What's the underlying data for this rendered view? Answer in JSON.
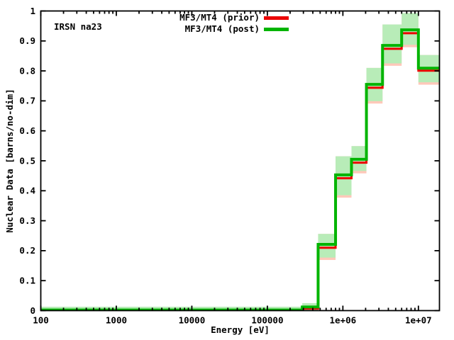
{
  "window": {
    "background": "#ffffff"
  },
  "chart_data": {
    "type": "step-line",
    "corner_label": "IRSN na23",
    "xlabel": "Energy [eV]",
    "ylabel": "Nuclear Data [barns/no-dim]",
    "x_scale": "log",
    "grid": "off",
    "legend_position": "top-center-inside",
    "xlim": [
      100,
      19000000
    ],
    "ylim": [
      0,
      1
    ],
    "x_ticks": [
      {
        "v": 100,
        "label": "100"
      },
      {
        "v": 1000,
        "label": "1000"
      },
      {
        "v": 10000,
        "label": "10000"
      },
      {
        "v": 100000,
        "label": "100000"
      },
      {
        "v": 1000000,
        "label": "1e+06"
      },
      {
        "v": 10000000,
        "label": "1e+07"
      }
    ],
    "y_ticks": [
      {
        "v": 0,
        "label": "0"
      },
      {
        "v": 0.1,
        "label": "0.1"
      },
      {
        "v": 0.2,
        "label": "0.2"
      },
      {
        "v": 0.3,
        "label": "0.3"
      },
      {
        "v": 0.4,
        "label": "0.4"
      },
      {
        "v": 0.5,
        "label": "0.5"
      },
      {
        "v": 0.6,
        "label": "0.6"
      },
      {
        "v": 0.7,
        "label": "0.7"
      },
      {
        "v": 0.8,
        "label": "0.8"
      },
      {
        "v": 0.9,
        "label": "0.9"
      },
      {
        "v": 1,
        "label": "1"
      }
    ],
    "legend": [
      {
        "label": "MF3/MT4 (prior)",
        "color": "#ec0000",
        "band_color": "#ffc8ba"
      },
      {
        "label": "MF3/MT4 (post)",
        "color": "#00b400",
        "band_color": "#b8ecb8"
      }
    ],
    "series": {
      "bin_edges_eV": [
        100,
        290000,
        470000,
        800000,
        1300000,
        2050000,
        3350000,
        6000000,
        10000000,
        19000000
      ],
      "post_values": [
        0.002,
        0.012,
        0.221,
        0.453,
        0.505,
        0.755,
        0.885,
        0.937,
        0.809
      ],
      "prior_values": [
        0.002,
        0.012,
        0.215,
        0.447,
        0.499,
        0.749,
        0.879,
        0.931,
        0.806
      ],
      "post_band_lo": [
        0,
        0,
        0.177,
        0.385,
        0.466,
        0.699,
        0.825,
        0.887,
        0.762
      ],
      "post_band_hi": [
        0.013,
        0.025,
        0.256,
        0.515,
        0.549,
        0.81,
        0.955,
        0.993,
        0.853
      ],
      "prior_band_extra_below": 0.008
    }
  }
}
